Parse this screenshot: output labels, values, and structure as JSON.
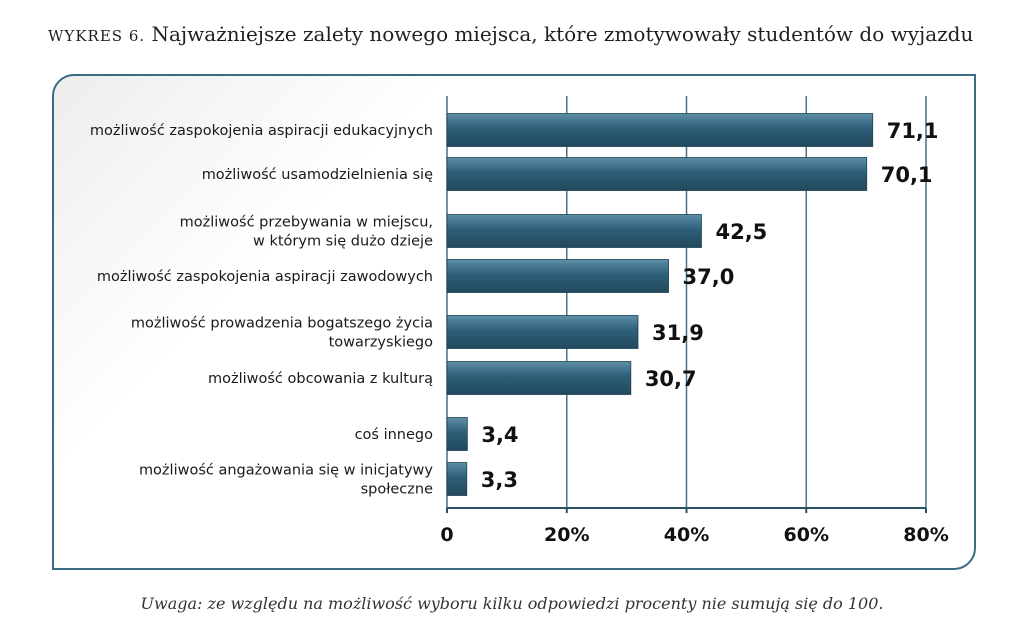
{
  "title_lead": "WYKRES 6.",
  "title_text": "Najważniejsze zalety nowego miejsca, które zmotywowały studentów do wyjazdu",
  "note": "Uwaga: ze względu na możliwość wyboru kilku odpowiedzi procenty nie sumują się do 100.",
  "colors": {
    "bar": "#2e5f78",
    "bar_light": "#5d8ea8",
    "grid": "#4a6f86",
    "frame": "#3a6a84"
  },
  "chart_data": {
    "type": "bar",
    "orientation": "horizontal",
    "categories": [
      [
        "możliwość zaspokojenia aspiracji edukacyjnych"
      ],
      [
        "możliwość usamodzielnienia się"
      ],
      [
        "możliwość przebywania w miejscu,",
        "w którym się dużo dzieje"
      ],
      [
        "możliwość zaspokojenia aspiracji zawodowych"
      ],
      [
        "możliwość prowadzenia bogatszego życia",
        "towarzyskiego"
      ],
      [
        "możliwość obcowania z kulturą"
      ],
      [
        "coś innego"
      ],
      [
        "możliwość angażowania się w inicjatywy",
        "społeczne"
      ]
    ],
    "values": [
      71.1,
      70.1,
      42.5,
      37.0,
      31.9,
      30.7,
      3.4,
      3.3
    ],
    "value_labels": [
      "71,1",
      "70,1",
      "42,5",
      "37,0",
      "31,9",
      "30,7",
      "3,4",
      "3,3"
    ],
    "xlim": [
      0,
      80
    ],
    "xticks": [
      0,
      20,
      40,
      60,
      80
    ],
    "xtick_labels": [
      "0",
      "20%",
      "40%",
      "60%",
      "80%"
    ],
    "grid": true
  }
}
